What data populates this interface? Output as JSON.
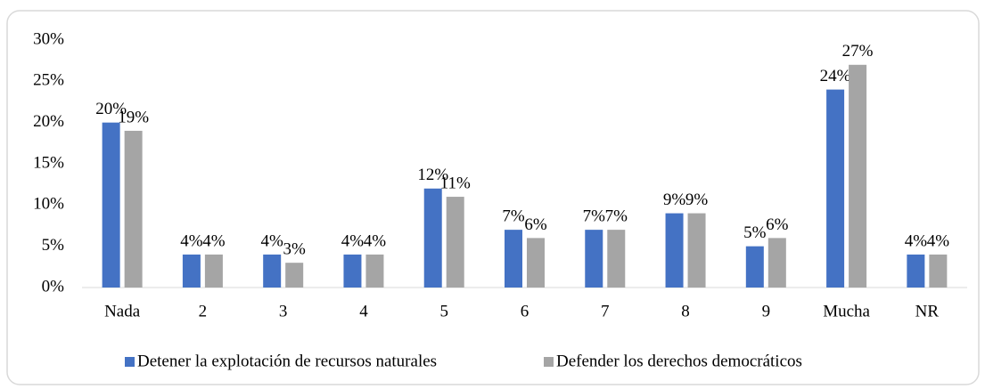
{
  "chart_data": {
    "type": "bar",
    "categories": [
      "Nada",
      "2",
      "3",
      "4",
      "5",
      "6",
      "7",
      "8",
      "9",
      "Mucha",
      "NR"
    ],
    "series": [
      {
        "name": "Detener la explotación de recursos naturales",
        "color": "#4472c4",
        "values": [
          20,
          4,
          4,
          4,
          12,
          7,
          7,
          9,
          5,
          24,
          4
        ],
        "value_labels": [
          "20%",
          "4%",
          "4%",
          "4%",
          "12%",
          "7%",
          "7%",
          "9%",
          "5%",
          "24%",
          "4%"
        ]
      },
      {
        "name": "Defender los derechos democráticos",
        "color": "#a5a5a5",
        "values": [
          19,
          4,
          3,
          4,
          11,
          6,
          7,
          9,
          6,
          27,
          4
        ],
        "value_labels": [
          "19%",
          "4%",
          "3%",
          "4%",
          "11%",
          "6%",
          "7%",
          "9%",
          "6%",
          "27%",
          "4%"
        ]
      }
    ],
    "ylim": [
      0,
      30
    ],
    "yticks": [
      {
        "value": 0,
        "label": "0%"
      },
      {
        "value": 5,
        "label": "5%"
      },
      {
        "value": 10,
        "label": "10%"
      },
      {
        "value": 15,
        "label": "15%"
      },
      {
        "value": 20,
        "label": "20%"
      },
      {
        "value": 25,
        "label": "25%"
      },
      {
        "value": 30,
        "label": "30%"
      }
    ],
    "grid": false,
    "legend": "bottom"
  }
}
